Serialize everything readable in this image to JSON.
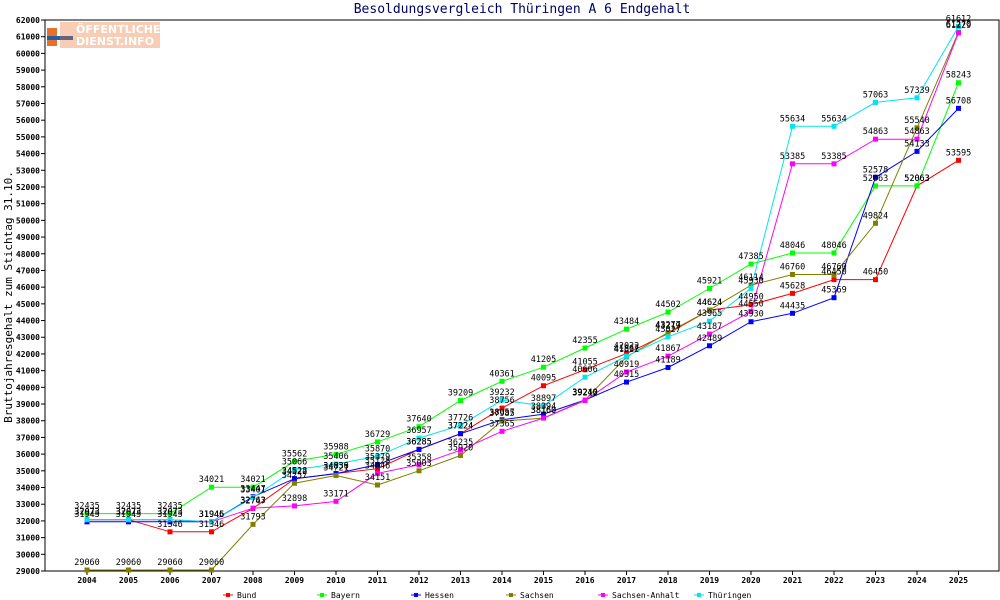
{
  "chart_data": {
    "type": "line",
    "title": "Besoldungsvergleich Thüringen A 6 Endgehalt",
    "ylabel": "Bruttojahresgehalt zum Stichtag 31.10.",
    "xlabel": "",
    "categories": [
      "2004",
      "2005",
      "2006",
      "2007",
      "2008",
      "2009",
      "2010",
      "2011",
      "2012",
      "2013",
      "2014",
      "2015",
      "2016",
      "2017",
      "2018",
      "2019",
      "2020",
      "2021",
      "2022",
      "2023",
      "2024",
      "2025"
    ],
    "ylim": [
      29000,
      62000
    ],
    "ytick_step": 1000,
    "grid": false,
    "legend_position": "bottom",
    "series": [
      {
        "name": "Bund",
        "color": "#ff0000",
        "values": [
          32073,
          32073,
          31346,
          31346,
          32747,
          34522,
          34839,
          35128,
          36285,
          37224,
          38756,
          40095,
          41055,
          42022,
          43219,
          44624,
          44950,
          45628,
          46450,
          46450,
          52063,
          53595
        ]
      },
      {
        "name": "Bayern",
        "color": "#00ff00",
        "values": [
          32435,
          32435,
          32435,
          34021,
          34021,
          35562,
          35988,
          36729,
          37640,
          39209,
          40361,
          41205,
          42355,
          43484,
          44502,
          45921,
          47385,
          48046,
          48046,
          52063,
          52063,
          58243
        ]
      },
      {
        "name": "Hessen",
        "color": "#0000ff",
        "values": [
          31945,
          31945,
          31945,
          31945,
          33447,
          34528,
          34836,
          35379,
          36285,
          37224,
          38057,
          38394,
          39240,
          40315,
          41189,
          42489,
          43930,
          44435,
          45369,
          52578,
          54133,
          56708
        ]
      },
      {
        "name": "Sachsen",
        "color": "#808000",
        "values": [
          29060,
          29060,
          29060,
          29060,
          31793,
          34257,
          34721,
          34151,
          35003,
          35920,
          37985,
          38160,
          39240,
          41822,
          43277,
          44624,
          46114,
          46760,
          46760,
          49824,
          55540,
          61270
        ]
      },
      {
        "name": "Sachsen-Anhalt",
        "color": "#ff00ff",
        "values": [
          32073,
          32073,
          32073,
          31946,
          32763,
          32898,
          33171,
          34846,
          35358,
          36235,
          37365,
          38160,
          39212,
          40919,
          41867,
          43187,
          44550,
          53385,
          53385,
          54863,
          54863,
          61229
        ]
      },
      {
        "name": "Thüringen",
        "color": "#00e5ee",
        "values": [
          32073,
          32073,
          32073,
          31946,
          33401,
          35066,
          35406,
          35870,
          36957,
          37726,
          39232,
          38897,
          40606,
          41867,
          43027,
          43965,
          45930,
          55634,
          55634,
          57063,
          57339,
          61612
        ]
      }
    ],
    "data_labels": [
      {
        "series": "Bund",
        "labels": [
          "32073",
          "32073",
          "31346",
          "31346",
          "32747",
          "34522",
          "34839",
          "35128",
          "36285",
          "37224",
          "38756",
          "40095",
          "41055",
          "42022",
          "43219",
          "44624",
          "44950",
          "45628",
          "46450",
          "46450",
          "52063",
          "53595"
        ]
      },
      {
        "series": "Bayern",
        "labels": [
          "32435",
          "32435",
          "32435",
          "34021",
          "34021",
          "35562",
          "35988",
          "36729",
          "37640",
          "39209",
          "40361",
          "41205",
          "42355",
          "43484",
          "44502",
          "45921",
          "47385",
          "48046",
          "48046",
          "52063",
          "52063",
          "58243"
        ]
      },
      {
        "series": "Hessen",
        "labels": [
          "31945",
          "31945",
          "31945",
          "31945",
          "33447",
          "34528",
          "34836",
          "35379",
          "36285",
          "37224",
          "38057",
          "38394",
          "39240",
          "40315",
          "41189",
          "42489",
          "43930",
          "44435",
          "45369",
          "52578",
          "54133",
          "56708"
        ]
      },
      {
        "series": "Sachsen",
        "labels": [
          "29060",
          "29060",
          "29060",
          "29060",
          "31793",
          "34257",
          "34721",
          "34151",
          "35003",
          "35920",
          "37985",
          "38160",
          "39240",
          "41822",
          "43277",
          "44624",
          "46114",
          "46760",
          "46760",
          "49824",
          "55540",
          "61270"
        ]
      },
      {
        "series": "Sachsen-Anhalt",
        "labels": [
          "32073",
          "32073",
          "32073",
          "31946",
          "32763",
          "32898",
          "33171",
          "34846",
          "35358",
          "36235",
          "37365",
          "38160",
          "39212",
          "40919",
          "41867",
          "43187",
          "44550",
          "53385",
          "53385",
          "54863",
          "54863",
          "61229"
        ]
      },
      {
        "series": "Thüringen",
        "labels": [
          "32073",
          "32073",
          "32073",
          "31946",
          "33401",
          "35066",
          "35406",
          "35870",
          "36957",
          "37726",
          "39232",
          "38897",
          "40606",
          "41867",
          "43027",
          "43965",
          "45930",
          "55634",
          "55634",
          "57063",
          "57339",
          "61612"
        ]
      }
    ]
  },
  "logo": {
    "line1": "ÖFFENTLICHER",
    "line2": "DIENST.INFO",
    "color": "#e8702a"
  },
  "colors": {
    "title": "#000066",
    "axis": "#000000",
    "background": "#ffffff"
  }
}
